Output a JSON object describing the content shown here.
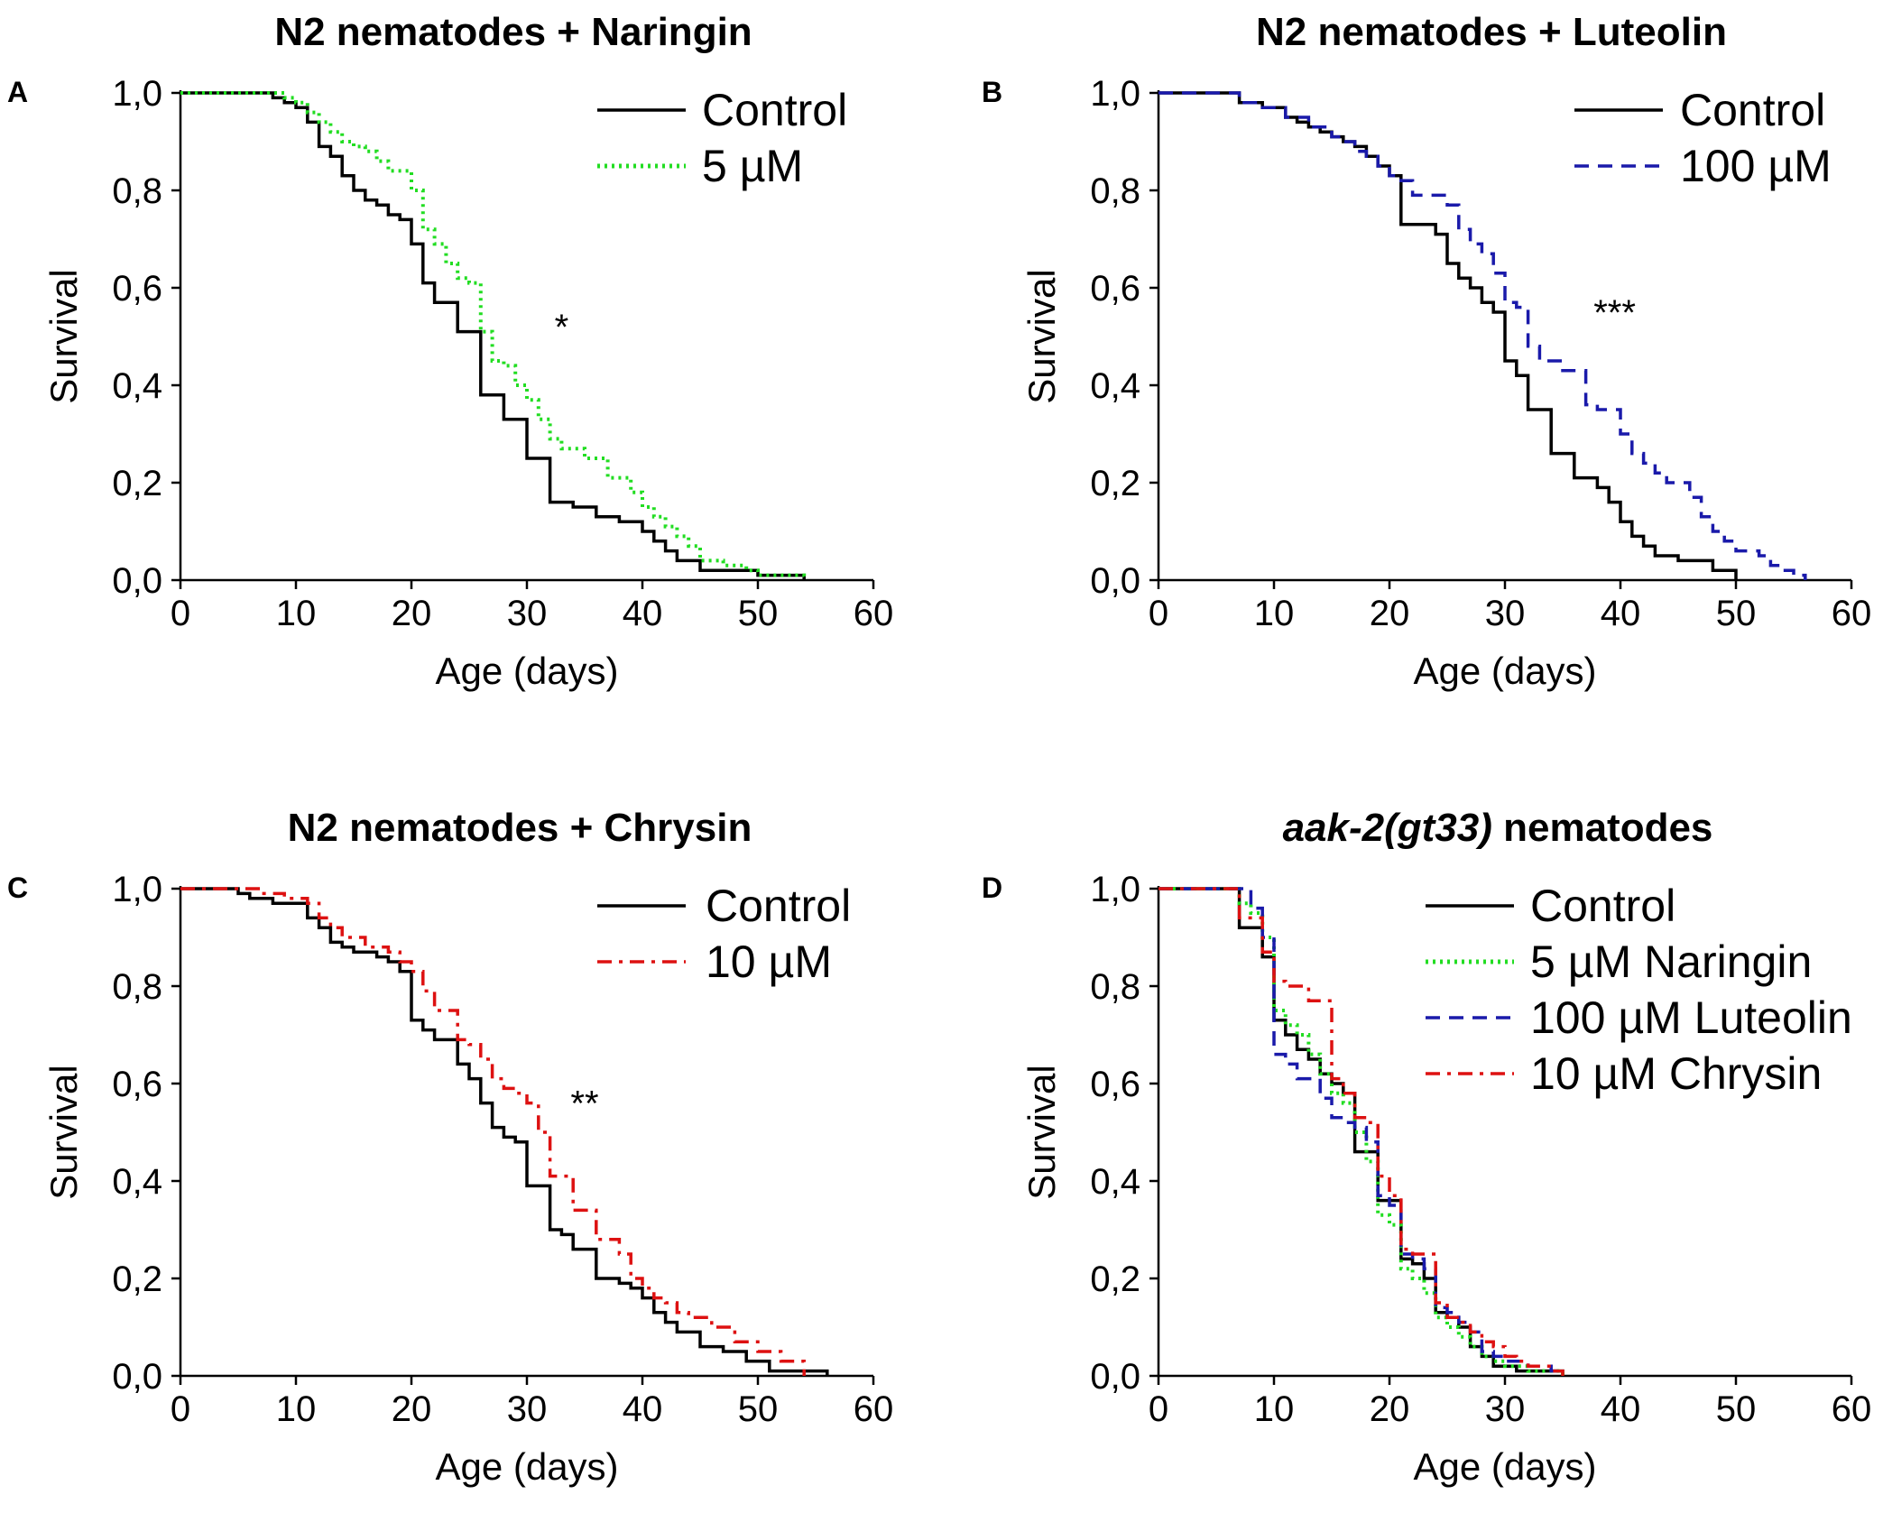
{
  "colors": {
    "control": "#000000",
    "naringin": "#22dd22",
    "luteolin": "#1a1aaa",
    "chrysin": "#dd1111"
  },
  "chart_data": [
    {
      "type": "line",
      "panel": "A",
      "title_parts": [
        {
          "text": "N2 nematodes + Naringin",
          "italic": false
        }
      ],
      "xlabel": "Age (days)",
      "ylabel": "Survival",
      "xlim": [
        0,
        60
      ],
      "ylim": [
        0,
        1
      ],
      "xticks": [
        "0",
        "10",
        "20",
        "30",
        "40",
        "50",
        "60"
      ],
      "yticks": [
        "0,0",
        "0,2",
        "0,4",
        "0,6",
        "0,8",
        "1,0"
      ],
      "significance": "*",
      "significance_at": [
        33,
        0.52
      ],
      "legend_position": "top-right",
      "series": [
        {
          "name": "Control",
          "style": "solid",
          "color": "#000000",
          "x": [
            0,
            7,
            8,
            9,
            10,
            11,
            12,
            13,
            14,
            15,
            16,
            17,
            18,
            19,
            20,
            21,
            22,
            24,
            26,
            28,
            30,
            32,
            34,
            36,
            38,
            40,
            41,
            42,
            43,
            45,
            50,
            54
          ],
          "y": [
            1.0,
            1.0,
            0.99,
            0.98,
            0.97,
            0.94,
            0.89,
            0.87,
            0.83,
            0.8,
            0.78,
            0.77,
            0.75,
            0.74,
            0.69,
            0.61,
            0.57,
            0.51,
            0.38,
            0.33,
            0.25,
            0.16,
            0.15,
            0.13,
            0.12,
            0.1,
            0.08,
            0.06,
            0.04,
            0.02,
            0.01,
            0.0
          ]
        },
        {
          "name": "5 µM",
          "style": "dotted",
          "color": "#22dd22",
          "x": [
            0,
            7,
            9,
            10,
            11,
            12,
            13,
            14,
            15,
            16,
            17,
            18,
            20,
            21,
            22,
            23,
            24,
            25,
            26,
            27,
            28,
            29,
            30,
            31,
            32,
            33,
            35,
            37,
            39,
            40,
            41,
            42,
            43,
            44,
            45,
            47,
            49,
            50,
            54
          ],
          "y": [
            1.0,
            1.0,
            0.99,
            0.98,
            0.96,
            0.94,
            0.92,
            0.9,
            0.89,
            0.88,
            0.86,
            0.84,
            0.8,
            0.72,
            0.69,
            0.65,
            0.62,
            0.61,
            0.51,
            0.45,
            0.44,
            0.4,
            0.37,
            0.33,
            0.29,
            0.27,
            0.25,
            0.21,
            0.18,
            0.15,
            0.13,
            0.11,
            0.09,
            0.07,
            0.04,
            0.03,
            0.02,
            0.01,
            0.0
          ]
        }
      ]
    },
    {
      "type": "line",
      "panel": "B",
      "title_parts": [
        {
          "text": "N2 nematodes + Luteolin",
          "italic": false
        }
      ],
      "xlabel": "Age (days)",
      "ylabel": "Survival",
      "xlim": [
        0,
        60
      ],
      "ylim": [
        0,
        1
      ],
      "xticks": [
        "0",
        "10",
        "20",
        "30",
        "40",
        "50",
        "60"
      ],
      "yticks": [
        "0,0",
        "0,2",
        "0,4",
        "0,6",
        "0,8",
        "1,0"
      ],
      "significance": "***",
      "significance_at": [
        39.5,
        0.55
      ],
      "legend_position": "top-right",
      "series": [
        {
          "name": "Control",
          "style": "solid",
          "color": "#000000",
          "x": [
            0,
            7,
            9,
            11,
            12,
            13,
            14,
            15,
            16,
            17,
            18,
            19,
            20,
            21,
            22,
            24,
            25,
            26,
            27,
            28,
            29,
            30,
            31,
            32,
            34,
            36,
            38,
            39,
            40,
            41,
            42,
            43,
            45,
            48,
            50
          ],
          "y": [
            1.0,
            0.98,
            0.97,
            0.95,
            0.94,
            0.93,
            0.92,
            0.91,
            0.9,
            0.89,
            0.87,
            0.85,
            0.83,
            0.73,
            0.73,
            0.71,
            0.65,
            0.62,
            0.6,
            0.57,
            0.55,
            0.45,
            0.42,
            0.35,
            0.26,
            0.21,
            0.19,
            0.16,
            0.12,
            0.09,
            0.07,
            0.05,
            0.04,
            0.02,
            0.0
          ]
        },
        {
          "name": "100 µM",
          "style": "dashed",
          "color": "#1a1aaa",
          "x": [
            0,
            7,
            9,
            11,
            13,
            15,
            16,
            17,
            18,
            19,
            20,
            21,
            22,
            23,
            25,
            26,
            27,
            28,
            29,
            30,
            31,
            32,
            33,
            35,
            37,
            38,
            40,
            41,
            42,
            43,
            44,
            45,
            46,
            47,
            48,
            49,
            50,
            52,
            53,
            54,
            55,
            56
          ],
          "y": [
            1.0,
            0.98,
            0.97,
            0.95,
            0.93,
            0.91,
            0.9,
            0.88,
            0.87,
            0.85,
            0.83,
            0.82,
            0.79,
            0.79,
            0.77,
            0.72,
            0.69,
            0.67,
            0.63,
            0.57,
            0.56,
            0.48,
            0.45,
            0.43,
            0.36,
            0.35,
            0.3,
            0.26,
            0.24,
            0.22,
            0.2,
            0.2,
            0.17,
            0.13,
            0.1,
            0.08,
            0.06,
            0.05,
            0.03,
            0.02,
            0.01,
            0.0
          ]
        }
      ]
    },
    {
      "type": "line",
      "panel": "C",
      "title_parts": [
        {
          "text": "N2 nematodes + Chrysin",
          "italic": false
        }
      ],
      "xlabel": "Age (days)",
      "ylabel": "Survival",
      "xlim": [
        0,
        60
      ],
      "ylim": [
        0,
        1
      ],
      "xticks": [
        "0",
        "10",
        "20",
        "30",
        "40",
        "50",
        "60"
      ],
      "yticks": [
        "0,0",
        "0,2",
        "0,4",
        "0,6",
        "0,8",
        "1,0"
      ],
      "significance": "**",
      "significance_at": [
        35,
        0.56
      ],
      "legend_position": "top-right",
      "series": [
        {
          "name": "Control",
          "style": "solid",
          "color": "#000000",
          "x": [
            0,
            5,
            6,
            8,
            9,
            11,
            12,
            13,
            14,
            15,
            17,
            18,
            19,
            20,
            21,
            22,
            24,
            25,
            26,
            27,
            28,
            29,
            30,
            31,
            32,
            33,
            34,
            36,
            38,
            39,
            40,
            41,
            42,
            43,
            45,
            47,
            49,
            51,
            53,
            56
          ],
          "y": [
            1.0,
            0.99,
            0.98,
            0.97,
            0.97,
            0.94,
            0.92,
            0.89,
            0.88,
            0.87,
            0.86,
            0.85,
            0.83,
            0.73,
            0.71,
            0.69,
            0.64,
            0.61,
            0.56,
            0.51,
            0.49,
            0.48,
            0.39,
            0.39,
            0.3,
            0.29,
            0.26,
            0.2,
            0.19,
            0.18,
            0.16,
            0.13,
            0.11,
            0.09,
            0.06,
            0.05,
            0.03,
            0.01,
            0.01,
            0.0
          ]
        },
        {
          "name": "10 µM",
          "style": "dashdot",
          "color": "#dd1111",
          "x": [
            0,
            5,
            7,
            9,
            11,
            12,
            13,
            14,
            16,
            18,
            19,
            20,
            21,
            22,
            24,
            25,
            26,
            27,
            28,
            29,
            30,
            31,
            32,
            34,
            36,
            38,
            39,
            40,
            41,
            42,
            43,
            44,
            46,
            48,
            50,
            52,
            54
          ],
          "y": [
            1.0,
            1.0,
            0.99,
            0.98,
            0.97,
            0.94,
            0.92,
            0.9,
            0.88,
            0.87,
            0.85,
            0.83,
            0.79,
            0.75,
            0.69,
            0.68,
            0.65,
            0.61,
            0.59,
            0.58,
            0.56,
            0.5,
            0.41,
            0.34,
            0.28,
            0.25,
            0.2,
            0.18,
            0.16,
            0.15,
            0.13,
            0.12,
            0.1,
            0.07,
            0.05,
            0.03,
            0.0
          ]
        }
      ]
    },
    {
      "type": "line",
      "panel": "D",
      "title_parts": [
        {
          "text": "aak-2(gt33)",
          "italic": true
        },
        {
          "text": " nematodes",
          "italic": false
        }
      ],
      "xlabel": "Age (days)",
      "ylabel": "Survival",
      "xlim": [
        0,
        60
      ],
      "ylim": [
        0,
        1
      ],
      "xticks": [
        "0",
        "10",
        "20",
        "30",
        "40",
        "50",
        "60"
      ],
      "yticks": [
        "0,0",
        "0,2",
        "0,4",
        "0,6",
        "0,8",
        "1,0"
      ],
      "significance": "",
      "legend_position": "top-right",
      "series": [
        {
          "name": "Control",
          "style": "solid",
          "color": "#000000",
          "x": [
            0,
            6,
            7,
            9,
            10,
            11,
            12,
            13,
            14,
            15,
            16,
            17,
            18,
            19,
            20,
            21,
            22,
            23,
            24,
            25,
            26,
            27,
            28,
            29,
            31,
            32,
            34,
            35
          ],
          "y": [
            1.0,
            1.0,
            0.92,
            0.86,
            0.73,
            0.7,
            0.67,
            0.65,
            0.62,
            0.6,
            0.58,
            0.46,
            0.46,
            0.36,
            0.36,
            0.24,
            0.23,
            0.2,
            0.13,
            0.12,
            0.1,
            0.06,
            0.04,
            0.02,
            0.01,
            0.01,
            0.01,
            0.0
          ]
        },
        {
          "name": "5 µM Naringin",
          "style": "dotted",
          "color": "#22dd22",
          "x": [
            0,
            6,
            7,
            8,
            9,
            10,
            11,
            12,
            13,
            14,
            15,
            16,
            17,
            18,
            19,
            20,
            21,
            22,
            23,
            24,
            25,
            26,
            27,
            28,
            29,
            30,
            32,
            35
          ],
          "y": [
            1.0,
            1.0,
            0.97,
            0.95,
            0.9,
            0.75,
            0.72,
            0.7,
            0.66,
            0.62,
            0.58,
            0.56,
            0.5,
            0.44,
            0.33,
            0.31,
            0.22,
            0.2,
            0.17,
            0.12,
            0.1,
            0.08,
            0.06,
            0.04,
            0.03,
            0.02,
            0.01,
            0.0
          ]
        },
        {
          "name": "100 µM Luteolin",
          "style": "dashed",
          "color": "#1a1aaa",
          "x": [
            0,
            6,
            8,
            9,
            10,
            11,
            12,
            14,
            15,
            16,
            17,
            18,
            19,
            20,
            21,
            22,
            23,
            24,
            25,
            26,
            27,
            28,
            29,
            30,
            31,
            32,
            34,
            35
          ],
          "y": [
            1.0,
            1.0,
            0.96,
            0.9,
            0.66,
            0.64,
            0.61,
            0.57,
            0.53,
            0.52,
            0.51,
            0.48,
            0.37,
            0.35,
            0.25,
            0.24,
            0.22,
            0.14,
            0.13,
            0.11,
            0.09,
            0.05,
            0.04,
            0.03,
            0.03,
            0.02,
            0.01,
            0.0
          ]
        },
        {
          "name": "10 µM Chrysin",
          "style": "dashdot",
          "color": "#dd1111",
          "x": [
            0,
            6,
            7,
            9,
            10,
            11,
            13,
            15,
            16,
            17,
            18,
            19,
            20,
            21,
            22,
            24,
            25,
            26,
            27,
            28,
            29,
            30,
            31,
            32,
            34,
            35
          ],
          "y": [
            1.0,
            1.0,
            0.94,
            0.87,
            0.81,
            0.8,
            0.77,
            0.61,
            0.58,
            0.53,
            0.52,
            0.41,
            0.37,
            0.26,
            0.25,
            0.15,
            0.12,
            0.11,
            0.09,
            0.07,
            0.06,
            0.04,
            0.03,
            0.02,
            0.01,
            0.0
          ]
        }
      ]
    }
  ]
}
